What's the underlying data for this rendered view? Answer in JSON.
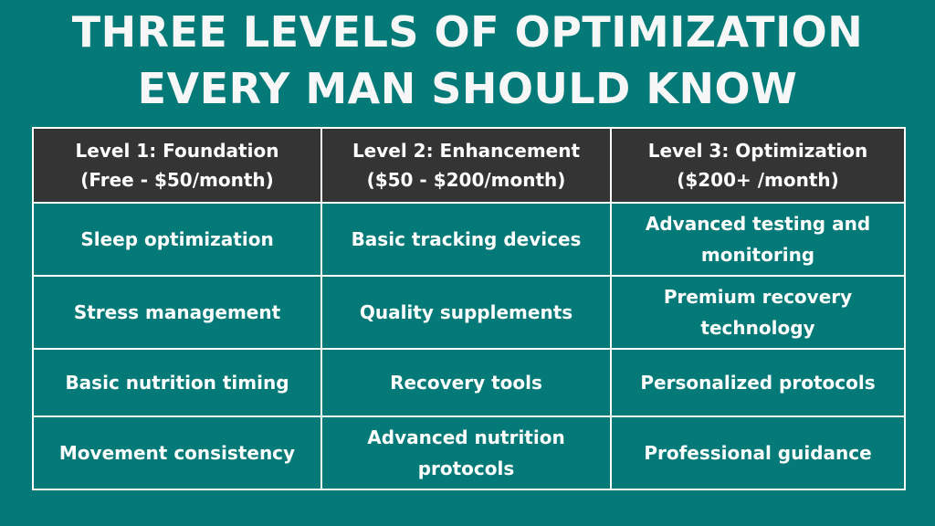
{
  "title": {
    "line1": "THREE LEVELS OF OPTIMIZATION",
    "line2": "EVERY MAN SHOULD KNOW"
  },
  "table": {
    "headers": [
      {
        "line1": "Level 1: Foundation",
        "line2": "(Free - $50/month)"
      },
      {
        "line1": "Level 2: Enhancement",
        "line2": "($50 - $200/month)"
      },
      {
        "line1": "Level 3: Optimization",
        "line2": "($200+ /month)"
      }
    ],
    "rows": [
      [
        "Sleep optimization",
        "Basic tracking devices",
        "Advanced testing and monitoring"
      ],
      [
        "Stress management",
        "Quality supplements",
        "Premium recovery technology"
      ],
      [
        "Basic nutrition timing",
        "Recovery tools",
        "Personalized protocols"
      ],
      [
        "Movement consistency",
        "Advanced nutrition protocols",
        "Professional guidance"
      ]
    ]
  },
  "colors": {
    "background": "#037a78",
    "header_background": "#343434",
    "border": "#ffffff",
    "text": "#ffffff"
  }
}
